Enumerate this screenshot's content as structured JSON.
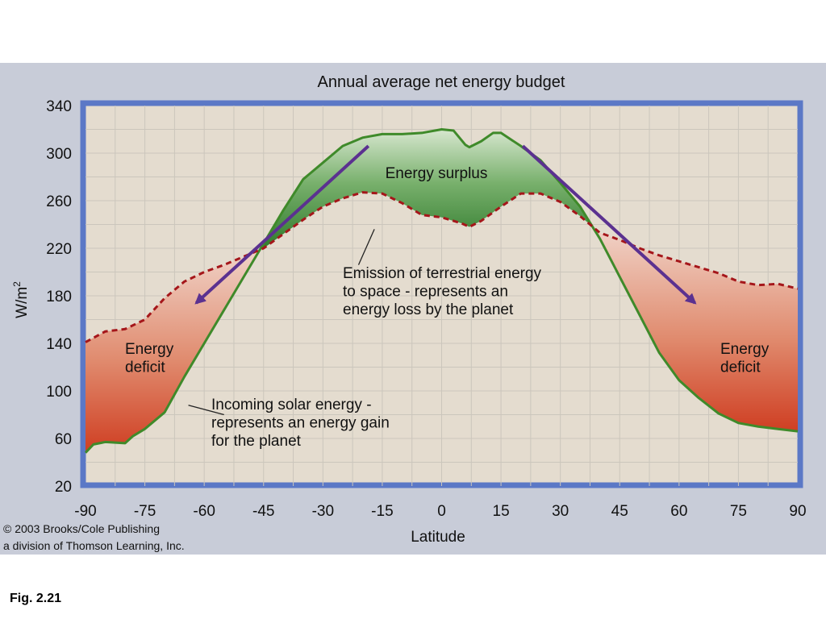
{
  "chart_data": {
    "type": "line",
    "title": "Annual average net energy budget",
    "xlabel": "Latitude",
    "ylabel": "W/m²",
    "ylabel_base": "W/m",
    "ylabel_sup": "2",
    "xlim": [
      -90,
      90
    ],
    "ylim": [
      20,
      340
    ],
    "x_ticks": [
      -90,
      -75,
      -60,
      -45,
      -30,
      -15,
      0,
      15,
      30,
      45,
      60,
      75,
      90
    ],
    "y_ticks": [
      20,
      60,
      100,
      140,
      180,
      220,
      260,
      300,
      340
    ],
    "grid": true,
    "series": [
      {
        "name": "Incoming solar energy - represents an energy gain for the planet",
        "color": "#3f8a2a",
        "style": "solid",
        "x": [
          -90,
          -88,
          -85,
          -80,
          -78,
          -75,
          -70,
          -65,
          -60,
          -55,
          -50,
          -45,
          -40,
          -35,
          -30,
          -25,
          -20,
          -15,
          -10,
          -5,
          0,
          3,
          6,
          7,
          10,
          13,
          15,
          20,
          25,
          30,
          35,
          40,
          45,
          50,
          55,
          60,
          65,
          70,
          75,
          80,
          85,
          90
        ],
        "y": [
          48,
          55,
          57,
          56,
          62,
          68,
          82,
          112,
          140,
          168,
          196,
          224,
          252,
          278,
          292,
          306,
          313,
          316,
          316,
          317,
          320,
          319,
          307,
          305,
          310,
          317,
          317,
          306,
          294,
          275,
          255,
          228,
          196,
          164,
          132,
          109,
          94,
          81,
          73,
          70,
          68,
          66
        ],
        "label_lines": [
          "Incoming solar energy -",
          "represents an energy gain",
          "for the planet"
        ]
      },
      {
        "name": "Emission of terrestrial energy to space - represents an energy loss by the planet",
        "color": "#a5161a",
        "style": "dashed",
        "x": [
          -90,
          -85,
          -80,
          -75,
          -70,
          -65,
          -60,
          -55,
          -50,
          -45,
          -40,
          -35,
          -30,
          -25,
          -20,
          -15,
          -10,
          -5,
          0,
          5,
          7,
          10,
          15,
          20,
          25,
          30,
          35,
          40,
          45,
          50,
          55,
          60,
          65,
          70,
          75,
          80,
          85,
          90
        ],
        "y": [
          141,
          150,
          152,
          160,
          178,
          192,
          200,
          206,
          213,
          220,
          232,
          244,
          255,
          262,
          267,
          266,
          258,
          248,
          246,
          241,
          238,
          243,
          255,
          266,
          266,
          259,
          247,
          233,
          227,
          220,
          214,
          209,
          204,
          199,
          192,
          189,
          190,
          186
        ],
        "label_lines": [
          "Emission of terrestrial energy",
          "to space - represents an",
          "energy loss by the planet"
        ]
      }
    ],
    "annotations": [
      {
        "name": "energy-surplus",
        "lines": [
          "Energy surplus"
        ]
      },
      {
        "name": "energy-deficit-south",
        "lines": [
          "Energy",
          "deficit"
        ]
      },
      {
        "name": "energy-deficit-north",
        "lines": [
          "Energy",
          "deficit"
        ]
      }
    ]
  },
  "copyright": {
    "line1": "© 2003 Brooks/Cole Publishing",
    "line2": "a division of Thomson Learning, Inc."
  },
  "caption": "Fig. 2.21",
  "colors": {
    "panel": "#c8ccd8",
    "frame": "#5b78c6",
    "plot_bg": "#e4dccf",
    "surplus": "#3e8a35",
    "deficit": "#d1452c",
    "arrow": "#5b3190"
  }
}
